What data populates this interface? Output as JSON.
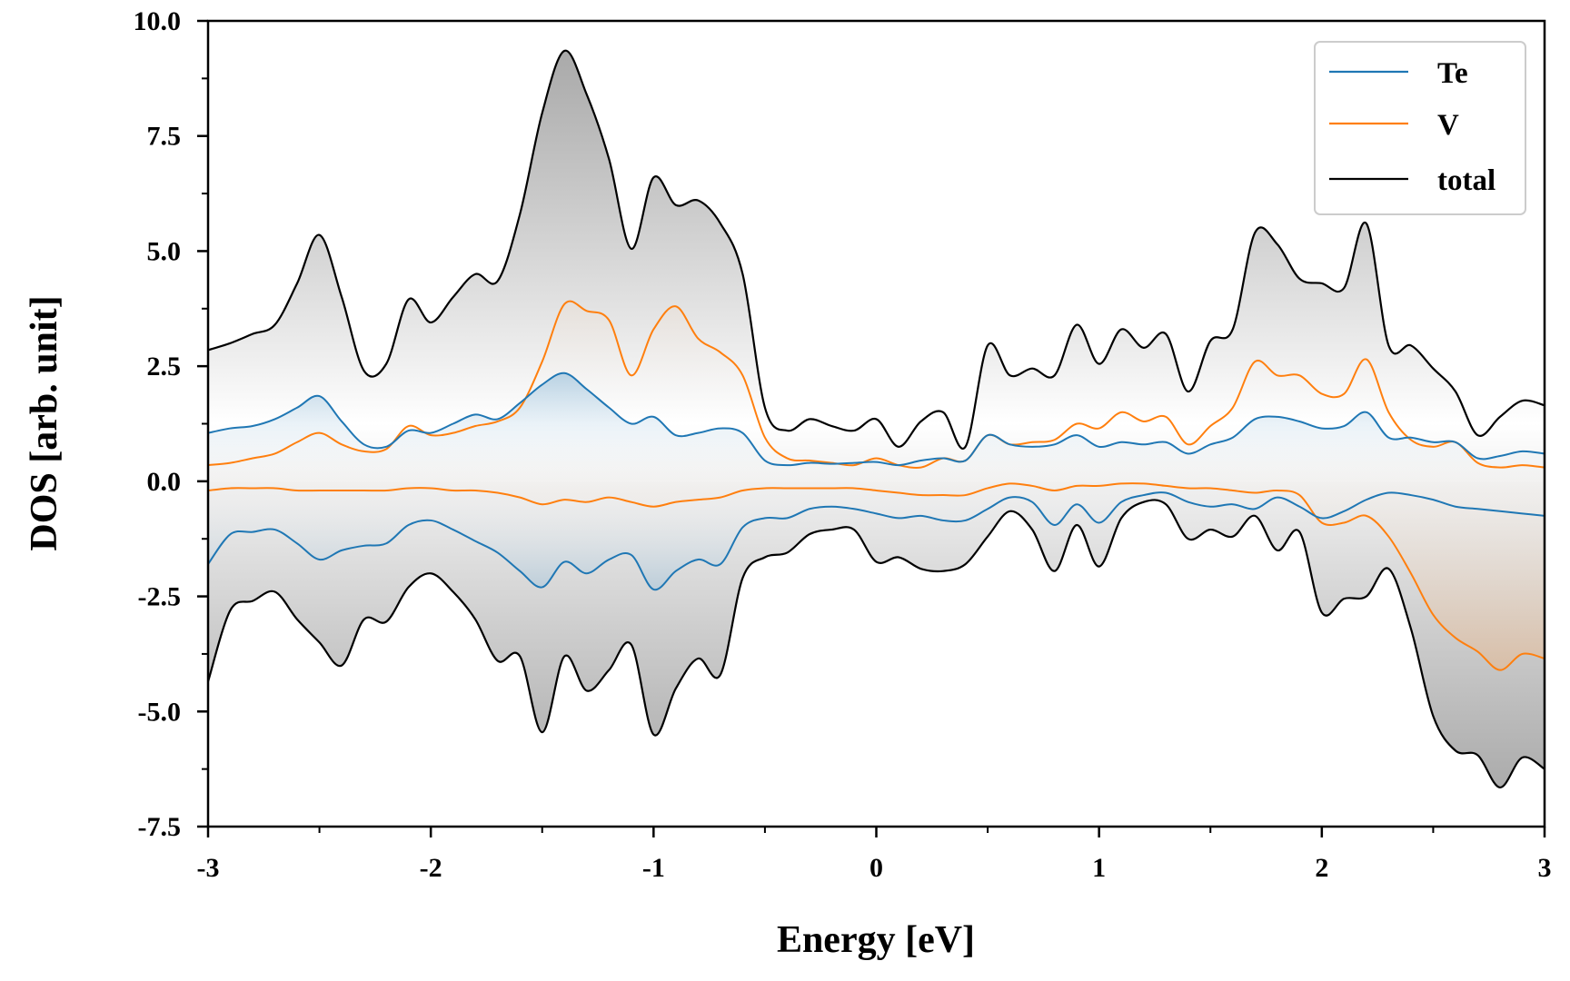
{
  "chart_data": {
    "type": "line",
    "title": "",
    "xlabel": "Energy [eV]",
    "ylabel": "DOS [arb. unit]",
    "xlim": [
      -3,
      3
    ],
    "ylim": [
      -7.5,
      10.0
    ],
    "xticks": [
      -3,
      -2,
      -1,
      0,
      1,
      2,
      3
    ],
    "xtick_labels": [
      "-3",
      "-2",
      "-1",
      "0",
      "1",
      "2",
      "3"
    ],
    "yticks": [
      -7.5,
      -5.0,
      -2.5,
      0.0,
      2.5,
      5.0,
      7.5,
      10.0
    ],
    "ytick_labels": [
      "-7.5",
      "-5.0",
      "-2.5",
      "0.0",
      "2.5",
      "5.0",
      "7.5",
      "10.0"
    ],
    "grid": false,
    "legend_position": "top-right",
    "fill_to_zero": true,
    "colors": {
      "Te": "#1f77b4",
      "V": "#ff7f0e",
      "total": "#000000"
    },
    "x": [
      -3.0,
      -2.9,
      -2.8,
      -2.7,
      -2.6,
      -2.5,
      -2.4,
      -2.3,
      -2.2,
      -2.1,
      -2.0,
      -1.9,
      -1.8,
      -1.7,
      -1.6,
      -1.5,
      -1.4,
      -1.3,
      -1.2,
      -1.1,
      -1.0,
      -0.9,
      -0.8,
      -0.7,
      -0.6,
      -0.5,
      -0.4,
      -0.3,
      -0.2,
      -0.1,
      0.0,
      0.1,
      0.2,
      0.3,
      0.4,
      0.5,
      0.6,
      0.7,
      0.8,
      0.9,
      1.0,
      1.1,
      1.2,
      1.3,
      1.4,
      1.5,
      1.6,
      1.7,
      1.8,
      1.9,
      2.0,
      2.1,
      2.2,
      2.3,
      2.4,
      2.5,
      2.6,
      2.7,
      2.8,
      2.9,
      3.0
    ],
    "series": [
      {
        "name": "Te",
        "spin": "up",
        "values": [
          1.05,
          1.15,
          1.2,
          1.35,
          1.6,
          1.85,
          1.3,
          0.8,
          0.75,
          1.1,
          1.05,
          1.25,
          1.45,
          1.35,
          1.7,
          2.1,
          2.35,
          2.0,
          1.6,
          1.25,
          1.4,
          1.0,
          1.05,
          1.15,
          1.05,
          0.45,
          0.35,
          0.4,
          0.38,
          0.4,
          0.42,
          0.35,
          0.45,
          0.5,
          0.45,
          1.0,
          0.8,
          0.75,
          0.8,
          1.0,
          0.75,
          0.85,
          0.8,
          0.85,
          0.6,
          0.8,
          0.95,
          1.35,
          1.4,
          1.3,
          1.15,
          1.2,
          1.5,
          0.95,
          0.95,
          0.85,
          0.85,
          0.5,
          0.55,
          0.65,
          0.6
        ]
      },
      {
        "name": "V",
        "spin": "up",
        "values": [
          0.35,
          0.4,
          0.5,
          0.6,
          0.85,
          1.05,
          0.8,
          0.65,
          0.7,
          1.2,
          1.0,
          1.05,
          1.2,
          1.3,
          1.6,
          2.6,
          3.85,
          3.7,
          3.5,
          2.3,
          3.3,
          3.8,
          3.1,
          2.8,
          2.3,
          0.95,
          0.5,
          0.45,
          0.4,
          0.35,
          0.5,
          0.35,
          0.3,
          0.5,
          0.45,
          1.0,
          0.8,
          0.85,
          0.9,
          1.25,
          1.15,
          1.5,
          1.3,
          1.4,
          0.8,
          1.2,
          1.6,
          2.6,
          2.3,
          2.3,
          1.9,
          1.9,
          2.65,
          1.5,
          0.9,
          0.75,
          0.85,
          0.4,
          0.3,
          0.35,
          0.3
        ]
      },
      {
        "name": "total",
        "spin": "up",
        "values": [
          2.85,
          3.0,
          3.2,
          3.4,
          4.3,
          5.35,
          4.0,
          2.4,
          2.55,
          3.95,
          3.45,
          4.0,
          4.5,
          4.35,
          5.8,
          8.0,
          9.35,
          8.4,
          7.0,
          5.05,
          6.6,
          6.0,
          6.1,
          5.6,
          4.5,
          1.6,
          1.1,
          1.35,
          1.2,
          1.1,
          1.35,
          0.75,
          1.3,
          1.5,
          0.75,
          2.95,
          2.3,
          2.45,
          2.3,
          3.4,
          2.55,
          3.3,
          2.9,
          3.2,
          1.95,
          3.05,
          3.3,
          5.4,
          5.15,
          4.4,
          4.3,
          4.2,
          5.6,
          2.95,
          2.95,
          2.45,
          1.95,
          1.0,
          1.4,
          1.75,
          1.65
        ]
      },
      {
        "name": "Te",
        "spin": "down",
        "values": [
          -1.8,
          -1.15,
          -1.1,
          -1.05,
          -1.35,
          -1.7,
          -1.5,
          -1.4,
          -1.35,
          -0.95,
          -0.85,
          -1.05,
          -1.3,
          -1.55,
          -1.95,
          -2.3,
          -1.75,
          -2.0,
          -1.7,
          -1.6,
          -2.35,
          -1.95,
          -1.7,
          -1.8,
          -1.0,
          -0.8,
          -0.8,
          -0.6,
          -0.55,
          -0.6,
          -0.7,
          -0.8,
          -0.75,
          -0.85,
          -0.85,
          -0.6,
          -0.35,
          -0.45,
          -0.95,
          -0.5,
          -0.9,
          -0.45,
          -0.3,
          -0.25,
          -0.45,
          -0.55,
          -0.5,
          -0.6,
          -0.35,
          -0.55,
          -0.8,
          -0.65,
          -0.4,
          -0.25,
          -0.3,
          -0.4,
          -0.55,
          -0.6,
          -0.65,
          -0.7,
          -0.75
        ]
      },
      {
        "name": "V",
        "spin": "down",
        "values": [
          -0.2,
          -0.15,
          -0.15,
          -0.15,
          -0.2,
          -0.2,
          -0.2,
          -0.2,
          -0.2,
          -0.15,
          -0.15,
          -0.2,
          -0.2,
          -0.25,
          -0.35,
          -0.5,
          -0.4,
          -0.45,
          -0.35,
          -0.45,
          -0.55,
          -0.45,
          -0.4,
          -0.35,
          -0.2,
          -0.15,
          -0.15,
          -0.15,
          -0.15,
          -0.15,
          -0.2,
          -0.25,
          -0.3,
          -0.3,
          -0.3,
          -0.15,
          -0.05,
          -0.1,
          -0.2,
          -0.1,
          -0.1,
          -0.05,
          -0.05,
          -0.1,
          -0.15,
          -0.15,
          -0.2,
          -0.25,
          -0.2,
          -0.3,
          -0.9,
          -0.9,
          -0.75,
          -1.2,
          -2.0,
          -2.9,
          -3.4,
          -3.7,
          -4.1,
          -3.75,
          -3.85
        ]
      },
      {
        "name": "total",
        "spin": "down",
        "values": [
          -4.35,
          -2.8,
          -2.6,
          -2.4,
          -3.0,
          -3.5,
          -4.0,
          -3.0,
          -3.05,
          -2.3,
          -2.0,
          -2.4,
          -3.0,
          -3.9,
          -3.8,
          -5.45,
          -3.8,
          -4.55,
          -4.1,
          -3.55,
          -5.5,
          -4.5,
          -3.85,
          -4.2,
          -2.1,
          -1.65,
          -1.55,
          -1.15,
          -1.05,
          -1.05,
          -1.75,
          -1.65,
          -1.9,
          -1.95,
          -1.8,
          -1.2,
          -0.65,
          -1.05,
          -1.95,
          -0.95,
          -1.85,
          -0.8,
          -0.45,
          -0.5,
          -1.25,
          -1.05,
          -1.2,
          -0.75,
          -1.5,
          -1.1,
          -2.85,
          -2.55,
          -2.5,
          -1.9,
          -3.2,
          -5.1,
          -5.85,
          -5.95,
          -6.65,
          -6.0,
          -6.25
        ]
      }
    ]
  }
}
